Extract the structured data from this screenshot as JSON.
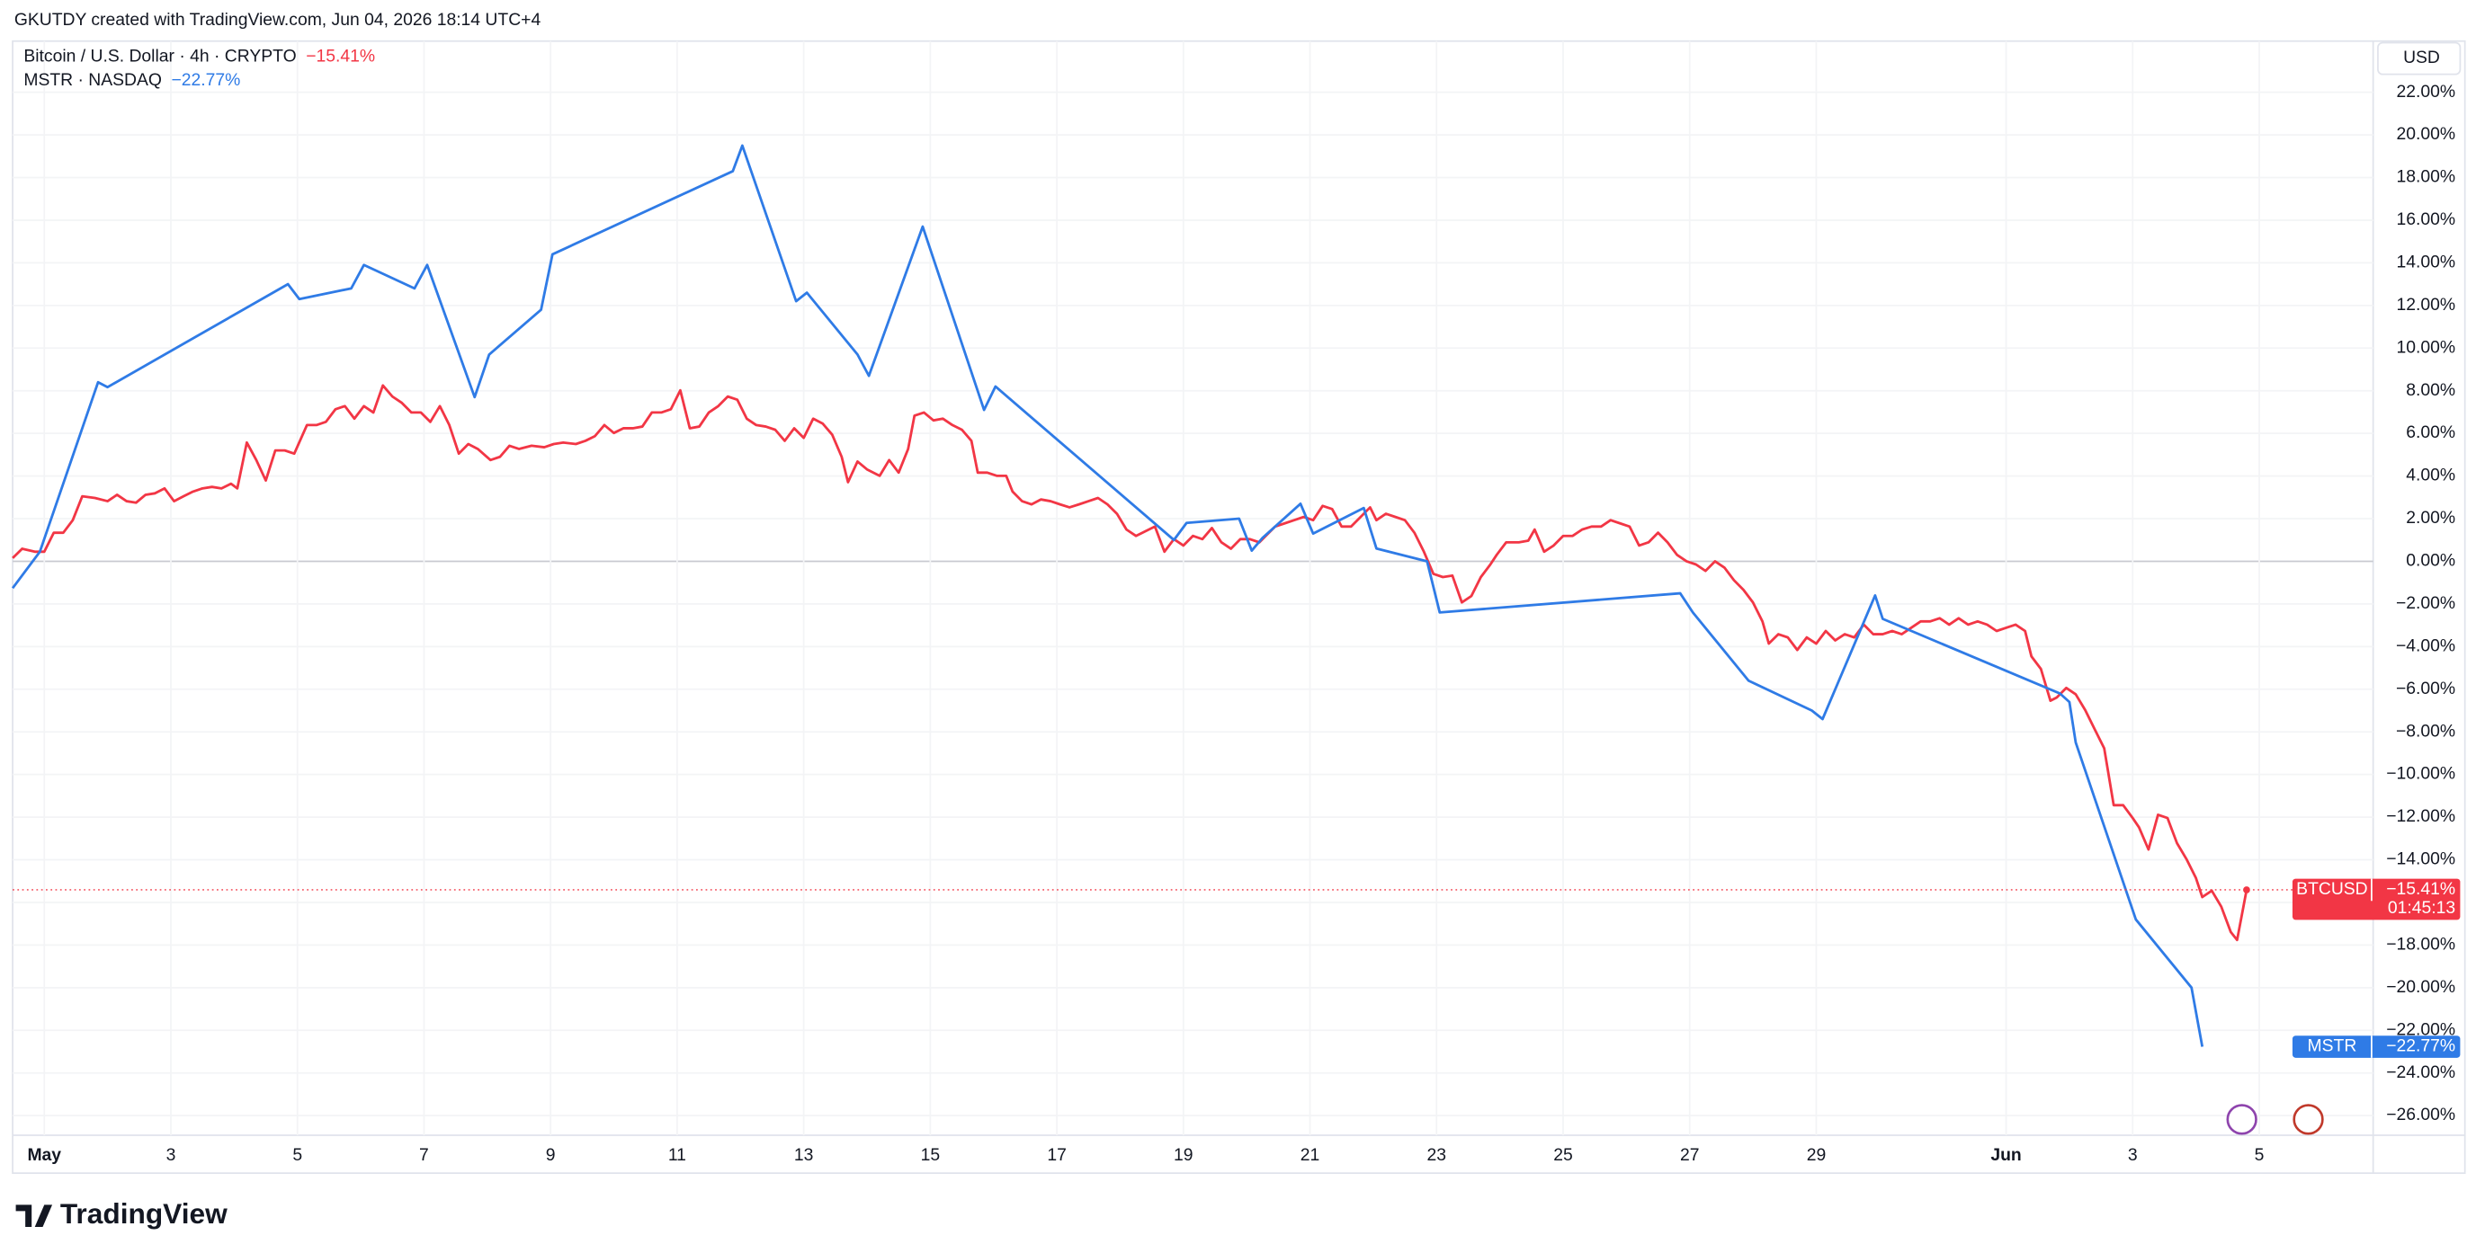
{
  "chart_data": {
    "type": "line",
    "credit": "GKUTDY created with TradingView.com, Jun 04, 2026 18:14 UTC+4",
    "currency": "USD",
    "brand": "TradingView",
    "countdown": "01:45:13",
    "xlim": [
      0.5,
      37.8
    ],
    "ylim": [
      -28.7,
      24.4
    ],
    "xticks": [
      {
        "value": 1,
        "label": "May"
      },
      3,
      5,
      7,
      9,
      11,
      13,
      15,
      17,
      19,
      21,
      23,
      25,
      27,
      29,
      {
        "value": 32,
        "label": "Jun"
      },
      {
        "value": 34,
        "label": "3"
      },
      {
        "value": 36,
        "label": "5"
      }
    ],
    "yticks": [
      {
        "value": 22,
        "label": "22.00%"
      },
      {
        "value": 20,
        "label": "20.00%"
      },
      {
        "value": 18,
        "label": "18.00%"
      },
      {
        "value": 16,
        "label": "16.00%"
      },
      {
        "value": 14,
        "label": "14.00%"
      },
      {
        "value": 12,
        "label": "12.00%"
      },
      {
        "value": 10,
        "label": "10.00%"
      },
      {
        "value": 8,
        "label": "8.00%"
      },
      {
        "value": 6,
        "label": "6.00%"
      },
      {
        "value": 4,
        "label": "4.00%"
      },
      {
        "value": 2,
        "label": "2.00%"
      },
      {
        "value": 0,
        "label": "0.00%"
      },
      {
        "value": -2,
        "label": "−2.00%"
      },
      {
        "value": -4,
        "label": "−4.00%"
      },
      {
        "value": -6,
        "label": "−6.00%"
      },
      {
        "value": -8,
        "label": "−8.00%"
      },
      {
        "value": -10,
        "label": "−10.00%"
      },
      {
        "value": -12,
        "label": "−12.00%"
      },
      {
        "value": -14,
        "label": "−14.00%"
      },
      {
        "value": -16,
        "label": "−16.00%"
      },
      {
        "value": -18,
        "label": "−18.00%"
      },
      {
        "value": -20,
        "label": "−20.00%"
      },
      {
        "value": -22,
        "label": "−22.00%"
      },
      {
        "value": -24,
        "label": "−24.00%"
      },
      {
        "value": -26,
        "label": "−26.00%"
      }
    ],
    "grid": true,
    "series": [
      {
        "name": "Bitcoin / U.S. Dollar · 4h · CRYPTO",
        "short_name": "BTCUSD",
        "last_value_label": "−15.41%",
        "color": "#f23645",
        "x": [
          0.5,
          0.65,
          0.85,
          1.0,
          1.15,
          1.3,
          1.45,
          1.6,
          1.8,
          2.0,
          2.15,
          2.3,
          2.45,
          2.6,
          2.75,
          2.9,
          3.05,
          3.2,
          3.35,
          3.5,
          3.65,
          3.8,
          3.95,
          4.05,
          4.2,
          4.35,
          4.5,
          4.65,
          4.8,
          4.95,
          5.15,
          5.3,
          5.45,
          5.6,
          5.75,
          5.9,
          6.05,
          6.2,
          6.35,
          6.5,
          6.65,
          6.8,
          6.95,
          7.1,
          7.25,
          7.4,
          7.55,
          7.7,
          7.85,
          8.05,
          8.2,
          8.35,
          8.5,
          8.7,
          8.9,
          9.05,
          9.2,
          9.4,
          9.55,
          9.7,
          9.85,
          10.0,
          10.15,
          10.3,
          10.45,
          10.6,
          10.75,
          10.9,
          11.05,
          11.2,
          11.35,
          11.5,
          11.65,
          11.8,
          11.95,
          12.1,
          12.25,
          12.4,
          12.55,
          12.7,
          12.85,
          13.0,
          13.15,
          13.3,
          13.45,
          13.6,
          13.7,
          13.85,
          14.0,
          14.2,
          14.35,
          14.5,
          14.65,
          14.75,
          14.9,
          15.05,
          15.2,
          15.35,
          15.5,
          15.65,
          15.75,
          15.9,
          16.05,
          16.2,
          16.3,
          16.45,
          16.6,
          16.75,
          16.9,
          17.05,
          17.2,
          17.35,
          17.5,
          17.65,
          17.8,
          17.95,
          18.1,
          18.25,
          18.4,
          18.55,
          18.7,
          18.85,
          19.0,
          19.15,
          19.3,
          19.45,
          19.6,
          19.75,
          19.9,
          20.05,
          20.2,
          20.3,
          20.45,
          20.6,
          20.75,
          20.9,
          21.05,
          21.2,
          21.35,
          21.5,
          21.65,
          21.8,
          21.95,
          22.05,
          22.2,
          22.35,
          22.5,
          22.65,
          22.8,
          22.95,
          23.1,
          23.25,
          23.4,
          23.55,
          23.7,
          23.85,
          23.95,
          24.1,
          24.3,
          24.45,
          24.55,
          24.7,
          24.85,
          25.0,
          25.15,
          25.3,
          25.45,
          25.6,
          25.75,
          25.9,
          26.05,
          26.2,
          26.35,
          26.5,
          26.65,
          26.8,
          26.95,
          27.1,
          27.25,
          27.4,
          27.55,
          27.7,
          27.85,
          28.0,
          28.15,
          28.25,
          28.4,
          28.55,
          28.7,
          28.85,
          29.0,
          29.15,
          29.3,
          29.45,
          29.6,
          29.75,
          29.9,
          30.05,
          30.2,
          30.35,
          30.5,
          30.65,
          30.8,
          30.95,
          31.1,
          31.25,
          31.4,
          31.55,
          31.7,
          31.85,
          32.0,
          32.15,
          32.3,
          32.4,
          32.55,
          32.7,
          32.8,
          32.95,
          33.1,
          33.25,
          33.4,
          33.55,
          33.7,
          33.85,
          34.0,
          34.1,
          34.25,
          34.4,
          34.55,
          34.7,
          34.85,
          35.0,
          35.1,
          35.25,
          35.4,
          35.55,
          35.65,
          35.75,
          35.8
        ],
        "values": [
          0.15,
          0.59,
          0.45,
          0.45,
          1.34,
          1.34,
          1.93,
          3.05,
          2.97,
          2.82,
          3.12,
          2.82,
          2.75,
          3.12,
          3.19,
          3.42,
          2.82,
          3.05,
          3.27,
          3.42,
          3.49,
          3.42,
          3.64,
          3.42,
          5.57,
          4.75,
          3.79,
          5.2,
          5.2,
          5.05,
          6.39,
          6.39,
          6.54,
          7.13,
          7.28,
          6.69,
          7.28,
          6.98,
          8.25,
          7.73,
          7.43,
          6.98,
          6.98,
          6.54,
          7.28,
          6.39,
          5.05,
          5.5,
          5.27,
          4.75,
          4.9,
          5.42,
          5.27,
          5.42,
          5.35,
          5.5,
          5.57,
          5.5,
          5.65,
          5.87,
          6.39,
          6.02,
          6.24,
          6.24,
          6.32,
          6.98,
          6.98,
          7.13,
          8.02,
          6.24,
          6.32,
          6.98,
          7.28,
          7.73,
          7.58,
          6.69,
          6.39,
          6.32,
          6.17,
          5.65,
          6.24,
          5.79,
          6.69,
          6.46,
          5.94,
          4.9,
          3.71,
          4.68,
          4.31,
          4.01,
          4.75,
          4.16,
          5.27,
          6.83,
          6.98,
          6.61,
          6.69,
          6.39,
          6.17,
          5.65,
          4.16,
          4.16,
          4.01,
          4.01,
          3.27,
          2.82,
          2.67,
          2.9,
          2.82,
          2.67,
          2.53,
          2.67,
          2.82,
          2.97,
          2.67,
          2.23,
          1.49,
          1.19,
          1.41,
          1.63,
          0.45,
          1.04,
          0.74,
          1.19,
          1.04,
          1.56,
          0.89,
          0.59,
          1.04,
          1.04,
          0.89,
          1.19,
          1.63,
          1.78,
          1.93,
          2.08,
          1.93,
          2.6,
          2.45,
          1.63,
          1.63,
          2.08,
          2.53,
          1.93,
          2.23,
          2.08,
          1.93,
          1.34,
          0.45,
          -0.59,
          -0.74,
          -0.67,
          -1.93,
          -1.63,
          -0.74,
          -0.15,
          0.3,
          0.89,
          0.89,
          0.97,
          1.49,
          0.45,
          0.74,
          1.19,
          1.19,
          1.49,
          1.63,
          1.63,
          1.93,
          1.78,
          1.63,
          0.74,
          0.89,
          1.34,
          0.89,
          0.3,
          0.0,
          -0.15,
          -0.45,
          0.0,
          -0.3,
          -0.89,
          -1.34,
          -1.93,
          -2.82,
          -3.86,
          -3.42,
          -3.57,
          -4.16,
          -3.57,
          -3.86,
          -3.27,
          -3.71,
          -3.42,
          -3.57,
          -2.97,
          -3.42,
          -3.42,
          -3.27,
          -3.42,
          -3.12,
          -2.82,
          -2.82,
          -2.67,
          -2.97,
          -2.67,
          -2.97,
          -2.82,
          -2.97,
          -3.27,
          -3.12,
          -2.97,
          -3.27,
          -4.46,
          -5.05,
          -6.54,
          -6.39,
          -5.94,
          -6.24,
          -6.98,
          -7.88,
          -8.77,
          -11.44,
          -11.44,
          -12.04,
          -12.48,
          -13.52,
          -11.89,
          -12.04,
          -13.22,
          -13.97,
          -14.86,
          -15.75,
          -15.45,
          -16.2,
          -17.39,
          -17.76,
          -16.2,
          -15.41
        ]
      },
      {
        "name": "MSTR · NASDAQ",
        "short_name": "MSTR",
        "last_value_label": "−22.77%",
        "color": "#2f7be6",
        "x": [
          0.5,
          0.93,
          1.85,
          2.0,
          4.85,
          5.03,
          5.85,
          6.05,
          6.85,
          7.05,
          7.8,
          8.03,
          8.85,
          9.03,
          11.88,
          12.03,
          12.88,
          13.05,
          13.85,
          14.03,
          14.88,
          15.85,
          16.03,
          18.85,
          19.05,
          19.88,
          20.08,
          20.25,
          20.85,
          21.05,
          21.85,
          22.05,
          22.85,
          23.05,
          26.85,
          27.05,
          27.93,
          28.93,
          29.1,
          29.93,
          30.05,
          32.85,
          33.0,
          33.1,
          34.05,
          34.93,
          35.1
        ],
        "values": [
          -1.26,
          0.45,
          8.4,
          8.17,
          13.0,
          12.3,
          12.8,
          13.9,
          12.8,
          13.9,
          7.7,
          9.7,
          11.8,
          14.4,
          18.3,
          19.5,
          12.2,
          12.6,
          9.7,
          8.7,
          15.7,
          7.1,
          8.2,
          1.0,
          1.8,
          2.0,
          0.5,
          1.1,
          2.7,
          1.3,
          2.5,
          0.6,
          0.0,
          -2.4,
          -1.5,
          -2.4,
          -5.6,
          -7.0,
          -7.4,
          -1.6,
          -2.7,
          -6.2,
          -6.6,
          -8.5,
          -16.8,
          -20.0,
          -22.77
        ]
      }
    ]
  }
}
